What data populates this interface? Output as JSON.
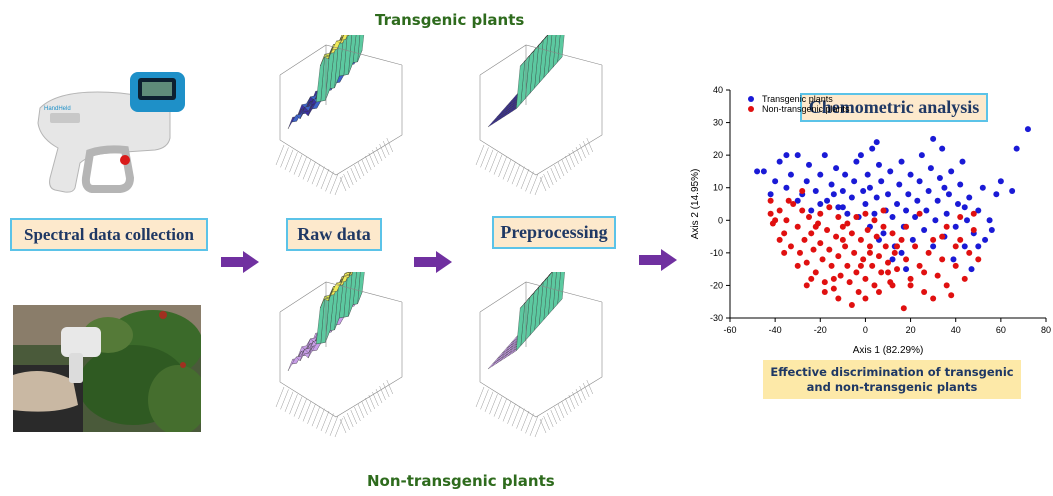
{
  "headings": {
    "top": "Transgenic plants",
    "bottom": "Non-transgenic plants"
  },
  "stages": {
    "collection": "Spectral data collection",
    "raw": "Raw data",
    "preprocessing": "Preprocessing"
  },
  "chemometric": {
    "title": "Chemometric analysis",
    "conclusion_line1": "Effective discrimination of transgenic",
    "conclusion_line2": "and non-transgenic plants"
  },
  "chart_data": {
    "type": "scatter",
    "xlabel": "Axis 1 (82.29%)",
    "ylabel": "Axis 2 (14.95%)",
    "xlim": [
      -60,
      80
    ],
    "ylim": [
      -30,
      40
    ],
    "xticks": [
      "-60",
      "-40",
      "-20",
      "0",
      "20",
      "40",
      "60",
      "80"
    ],
    "yticks": [
      "40",
      "30",
      "20",
      "10",
      "0",
      "-10",
      "-20",
      "-30"
    ],
    "legend_position": "top-left",
    "series": [
      {
        "name": "Transgenic plants",
        "color": "#1a1ad6",
        "points": [
          [
            -48,
            15
          ],
          [
            -45,
            15
          ],
          [
            -40,
            12
          ],
          [
            -38,
            18
          ],
          [
            -35,
            10
          ],
          [
            -33,
            14
          ],
          [
            -30,
            20
          ],
          [
            -28,
            8
          ],
          [
            -26,
            12
          ],
          [
            -25,
            17
          ],
          [
            -22,
            9
          ],
          [
            -20,
            14
          ],
          [
            -18,
            20
          ],
          [
            -17,
            6
          ],
          [
            -15,
            11
          ],
          [
            -13,
            16
          ],
          [
            -12,
            4
          ],
          [
            -10,
            9
          ],
          [
            -9,
            14
          ],
          [
            -8,
            2
          ],
          [
            -6,
            7
          ],
          [
            -5,
            12
          ],
          [
            -4,
            18
          ],
          [
            -3,
            1
          ],
          [
            -1,
            9
          ],
          [
            0,
            5
          ],
          [
            1,
            14
          ],
          [
            2,
            10
          ],
          [
            3,
            22
          ],
          [
            4,
            2
          ],
          [
            5,
            7
          ],
          [
            6,
            17
          ],
          [
            7,
            12
          ],
          [
            8,
            -4
          ],
          [
            9,
            3
          ],
          [
            10,
            8
          ],
          [
            11,
            15
          ],
          [
            12,
            1
          ],
          [
            13,
            -8
          ],
          [
            14,
            5
          ],
          [
            15,
            11
          ],
          [
            16,
            18
          ],
          [
            17,
            -2
          ],
          [
            18,
            3
          ],
          [
            19,
            8
          ],
          [
            20,
            14
          ],
          [
            21,
            -6
          ],
          [
            22,
            1
          ],
          [
            23,
            6
          ],
          [
            24,
            12
          ],
          [
            25,
            20
          ],
          [
            26,
            -3
          ],
          [
            27,
            3
          ],
          [
            28,
            9
          ],
          [
            29,
            16
          ],
          [
            30,
            -8
          ],
          [
            31,
            0
          ],
          [
            32,
            6
          ],
          [
            33,
            13
          ],
          [
            34,
            22
          ],
          [
            35,
            -5
          ],
          [
            36,
            2
          ],
          [
            37,
            8
          ],
          [
            38,
            15
          ],
          [
            39,
            -12
          ],
          [
            40,
            -2
          ],
          [
            41,
            5
          ],
          [
            42,
            11
          ],
          [
            43,
            18
          ],
          [
            44,
            -8
          ],
          [
            45,
            0
          ],
          [
            46,
            7
          ],
          [
            47,
            -15
          ],
          [
            48,
            -4
          ],
          [
            50,
            3
          ],
          [
            52,
            10
          ],
          [
            53,
            -6
          ],
          [
            55,
            0
          ],
          [
            56,
            -3
          ],
          [
            58,
            8
          ],
          [
            60,
            12
          ],
          [
            65,
            9
          ],
          [
            67,
            22
          ],
          [
            72,
            28
          ],
          [
            -10,
            4
          ],
          [
            -14,
            8
          ],
          [
            2,
            -2
          ],
          [
            6,
            -6
          ],
          [
            -20,
            5
          ],
          [
            -24,
            3
          ],
          [
            16,
            -10
          ],
          [
            30,
            25
          ],
          [
            -2,
            20
          ],
          [
            5,
            24
          ],
          [
            18,
            -15
          ],
          [
            35,
            10
          ],
          [
            44,
            4
          ],
          [
            50,
            -8
          ],
          [
            -35,
            20
          ],
          [
            -42,
            8
          ],
          [
            -30,
            6
          ],
          [
            12,
            -12
          ]
        ]
      },
      {
        "name": "Non-transgenic plants",
        "color": "#e01010",
        "points": [
          [
            -42,
            6
          ],
          [
            -42,
            2
          ],
          [
            -41,
            -1
          ],
          [
            -40,
            0
          ],
          [
            -38,
            3
          ],
          [
            -36,
            -4
          ],
          [
            -35,
            0
          ],
          [
            -33,
            -8
          ],
          [
            -32,
            5
          ],
          [
            -30,
            -2
          ],
          [
            -29,
            -10
          ],
          [
            -28,
            3
          ],
          [
            -27,
            -6
          ],
          [
            -26,
            -13
          ],
          [
            -25,
            1
          ],
          [
            -24,
            -4
          ],
          [
            -23,
            -9
          ],
          [
            -22,
            -16
          ],
          [
            -21,
            -1
          ],
          [
            -20,
            -7
          ],
          [
            -19,
            -12
          ],
          [
            -18,
            -19
          ],
          [
            -17,
            -3
          ],
          [
            -16,
            -9
          ],
          [
            -15,
            -14
          ],
          [
            -14,
            -21
          ],
          [
            -13,
            -5
          ],
          [
            -12,
            -11
          ],
          [
            -11,
            -17
          ],
          [
            -10,
            -2
          ],
          [
            -9,
            -8
          ],
          [
            -8,
            -14
          ],
          [
            -7,
            -19
          ],
          [
            -6,
            -4
          ],
          [
            -5,
            -10
          ],
          [
            -4,
            -16
          ],
          [
            -3,
            -22
          ],
          [
            -2,
            -6
          ],
          [
            -1,
            -12
          ],
          [
            0,
            -18
          ],
          [
            1,
            -3
          ],
          [
            2,
            -8
          ],
          [
            3,
            -14
          ],
          [
            4,
            -20
          ],
          [
            5,
            -5
          ],
          [
            6,
            -11
          ],
          [
            7,
            -16
          ],
          [
            8,
            -2
          ],
          [
            9,
            -8
          ],
          [
            10,
            -13
          ],
          [
            11,
            -19
          ],
          [
            12,
            -4
          ],
          [
            13,
            -10
          ],
          [
            14,
            -15
          ],
          [
            16,
            -6
          ],
          [
            17,
            -27
          ],
          [
            18,
            -12
          ],
          [
            20,
            -20
          ],
          [
            22,
            -8
          ],
          [
            24,
            -14
          ],
          [
            26,
            -22
          ],
          [
            28,
            -10
          ],
          [
            30,
            -24
          ],
          [
            32,
            -17
          ],
          [
            34,
            -5
          ],
          [
            36,
            -20
          ],
          [
            38,
            -23
          ],
          [
            40,
            -14
          ],
          [
            42,
            -6
          ],
          [
            44,
            -18
          ],
          [
            46,
            -10
          ],
          [
            48,
            -3
          ],
          [
            50,
            -12
          ],
          [
            -34,
            6
          ],
          [
            -28,
            9
          ],
          [
            -20,
            2
          ],
          [
            -16,
            4
          ],
          [
            -12,
            1
          ],
          [
            -8,
            -1
          ],
          [
            -4,
            1
          ],
          [
            0,
            2
          ],
          [
            4,
            0
          ],
          [
            8,
            3
          ],
          [
            -36,
            -10
          ],
          [
            -30,
            -14
          ],
          [
            -24,
            -18
          ],
          [
            -18,
            -22
          ],
          [
            -12,
            -24
          ],
          [
            -6,
            -26
          ],
          [
            0,
            -24
          ],
          [
            6,
            -22
          ],
          [
            12,
            -20
          ],
          [
            20,
            -18
          ],
          [
            -26,
            -20
          ],
          [
            -14,
            -18
          ],
          [
            -2,
            -14
          ],
          [
            10,
            -16
          ],
          [
            18,
            -2
          ],
          [
            24,
            2
          ],
          [
            30,
            -6
          ],
          [
            36,
            -2
          ],
          [
            42,
            1
          ],
          [
            48,
            2
          ],
          [
            -38,
            -6
          ],
          [
            -22,
            -2
          ],
          [
            -10,
            -6
          ],
          [
            2,
            -10
          ],
          [
            14,
            -8
          ],
          [
            26,
            -16
          ],
          [
            34,
            -12
          ],
          [
            40,
            -8
          ]
        ]
      }
    ]
  }
}
